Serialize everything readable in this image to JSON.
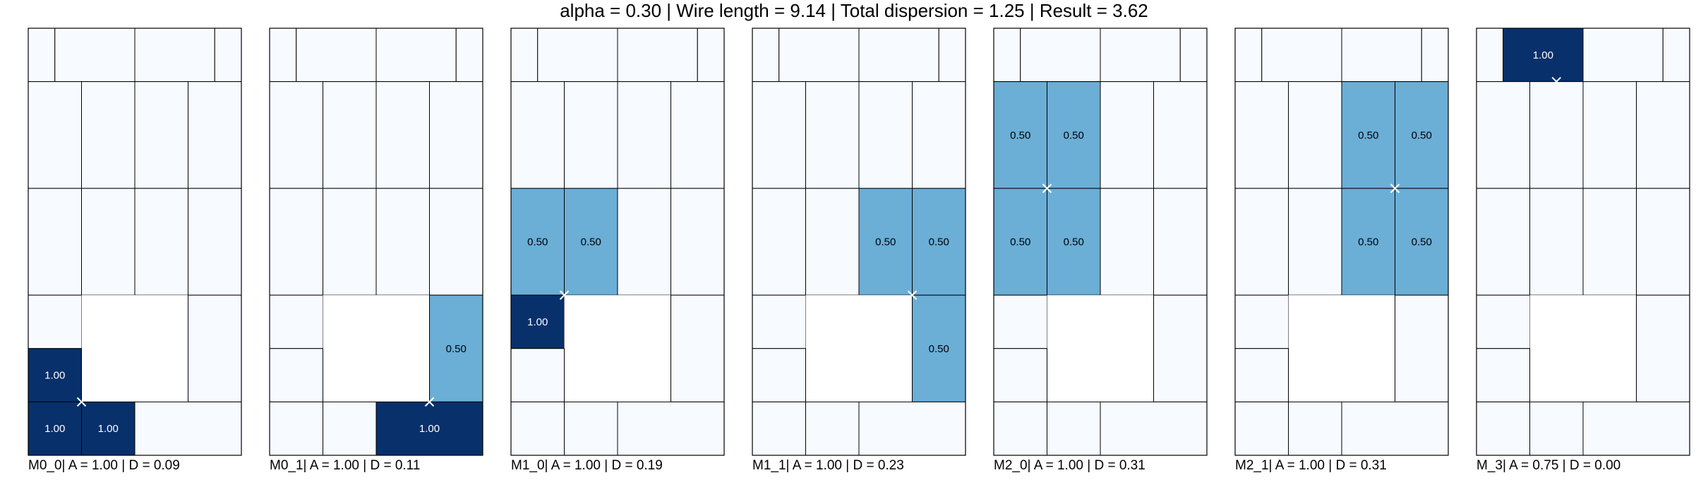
{
  "title": "alpha = 0.30 | Wire length = 9.14 | Total dispersion = 1.25 | Result = 3.62",
  "colors": {
    "empty": "#f7fbff",
    "mid": "#6baed6",
    "full": "#08306b",
    "blocked": "#ffffff",
    "grid": "#000000",
    "marker": "#ffffff"
  },
  "grid": {
    "rows": [
      {
        "cols": [
          "a",
          "b",
          "b",
          "b",
          "c",
          "c",
          "c",
          "d"
        ]
      },
      {
        "cols": [
          "e",
          "e",
          "f",
          "f",
          "g",
          "g",
          "h",
          "h"
        ]
      },
      {
        "cols": [
          "e",
          "e",
          "f",
          "f",
          "g",
          "g",
          "h",
          "h"
        ]
      },
      {
        "cols": [
          "i",
          "i",
          "j",
          "j",
          "k",
          "k",
          "l",
          "l"
        ]
      },
      {
        "cols": [
          "i",
          "i",
          "j",
          "j",
          "k",
          "k",
          "l",
          "l"
        ]
      },
      {
        "cols": [
          "m",
          "m",
          "X",
          "X",
          "X",
          "X",
          "n",
          "n"
        ]
      },
      {
        "cols": [
          "o",
          "o",
          "X",
          "X",
          "X",
          "X",
          "n",
          "n"
        ]
      },
      {
        "cols": [
          "p",
          "p",
          "q",
          "q",
          "r",
          "r",
          "r",
          "r"
        ]
      }
    ]
  },
  "panels": [
    {
      "caption": "M0_0| A = 1.00 | D = 0.09",
      "values": {
        "o": "1.00",
        "p": "1.00",
        "q": "1.00"
      },
      "marker": [
        2,
        7
      ]
    },
    {
      "caption": "M0_1| A = 1.00 | D = 0.11",
      "values": {
        "n": "0.50",
        "r": "1.00"
      },
      "marker": [
        6,
        7
      ]
    },
    {
      "caption": "M1_0| A = 1.00 | D = 0.19",
      "values": {
        "i": "0.50",
        "j": "0.50",
        "m": "1.00"
      },
      "marker": [
        2,
        5
      ]
    },
    {
      "caption": "M1_1| A = 1.00 | D = 0.23",
      "values": {
        "k": "0.50",
        "l": "0.50",
        "n": "0.50"
      },
      "marker": [
        6,
        5
      ]
    },
    {
      "caption": "M2_0| A = 1.00 | D = 0.31",
      "values": {
        "e": "0.50",
        "f": "0.50",
        "i": "0.50",
        "j": "0.50"
      },
      "marker": [
        2,
        3
      ]
    },
    {
      "caption": "M2_1| A = 1.00 | D = 0.31",
      "values": {
        "g": "0.50",
        "h": "0.50",
        "k": "0.50",
        "l": "0.50"
      },
      "marker": [
        6,
        3
      ]
    },
    {
      "caption": "M_3| A = 0.75 | D = 0.00",
      "values": {
        "b": "1.00"
      },
      "marker": [
        3,
        1
      ]
    }
  ]
}
